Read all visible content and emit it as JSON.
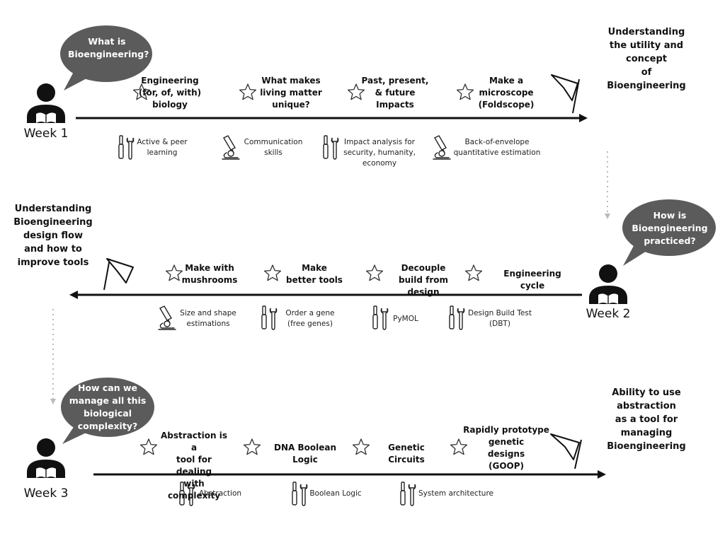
{
  "colors": {
    "bubble": "#5b5b5b",
    "line": "#111111",
    "dotted": "#bbbbbb",
    "text": "#111111"
  },
  "weeks": [
    {
      "label": "Week 1",
      "question": "What is\nBioengineering?",
      "outcome": "Understanding\nthe utility and\nconcept\nof Bioengineering",
      "topics": [
        "Engineering\n(for, of, with)\nbiology",
        "What makes\nliving matter\nunique?",
        "Past, present,\n& future\nImpacts",
        "Make a\nmicroscope\n(Foldscope)"
      ],
      "skills": [
        {
          "icon": "tools-icon",
          "label": "Active & peer\nlearning"
        },
        {
          "icon": "microscope-icon",
          "label": "Communication\nskills"
        },
        {
          "icon": "tools-icon",
          "label": "Impact analysis for\nsecurity, humanity,\neconomy"
        },
        {
          "icon": "microscope-icon",
          "label": "Back-of-envelope\nquantitative estimation"
        }
      ]
    },
    {
      "label": "Week 2",
      "question": "How is\nBioengineering\npracticed?",
      "outcome": "Understanding\nBioengineering\ndesign flow\nand how to\nimprove tools",
      "topics": [
        "Make with\nmushrooms",
        "Make\nbetter tools",
        "Decouple\nbuild from design",
        "Engineering cycle"
      ],
      "skills": [
        {
          "icon": "microscope-icon",
          "label": "Size and shape\nestimations"
        },
        {
          "icon": "tools-icon",
          "label": "Order a gene\n(free genes)"
        },
        {
          "icon": "tools-icon",
          "label": "PyMOL"
        },
        {
          "icon": "tools-icon",
          "label": "Design Build Test\n(DBT)"
        }
      ]
    },
    {
      "label": "Week 3",
      "question": "How can we\nmanage all this\nbiological\ncomplexity?",
      "outcome": "Ability to use\nabstraction\nas a tool for\nmanaging\nBioengineering",
      "topics": [
        "Abstraction is a\ntool for dealing\nwith complexity",
        "DNA Boolean Logic",
        "Genetic Circuits",
        "Rapidly prototype\ngenetic\ndesigns\n(GOOP)"
      ],
      "skills": [
        {
          "icon": "tools-icon",
          "label": "Abstraction"
        },
        {
          "icon": "tools-icon",
          "label": "Boolean Logic"
        },
        {
          "icon": "tools-icon",
          "label": "System architecture"
        }
      ]
    }
  ]
}
